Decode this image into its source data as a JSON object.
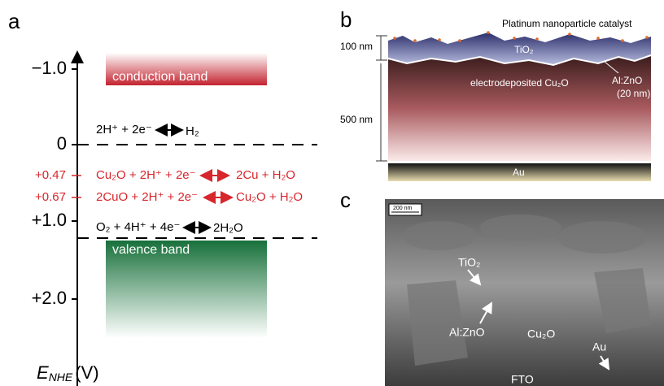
{
  "panel_a": {
    "label": "a",
    "ticks": [
      "−1.0",
      "0",
      "+1.0",
      "+2.0"
    ],
    "axis_title": {
      "symbol": "E",
      "subscript": "NHE",
      "unit": "(V)"
    },
    "conduction_band": "conduction band",
    "valence_band": "valence band",
    "potentials": [
      "+0.47",
      "+0.67"
    ],
    "reactions": [
      {
        "left": "2H⁺ + 2e⁻",
        "right": "H₂"
      },
      {
        "left": "Cu₂O + 2H⁺ + 2e⁻",
        "right": "2Cu + H₂O"
      },
      {
        "left": "2CuO + 2H⁺ + 2e⁻",
        "right": "Cu₂O + H₂O"
      },
      {
        "left": "O₂ + 4H⁺ + 4e⁻",
        "right": "2H₂O"
      }
    ]
  },
  "panel_b": {
    "label": "b",
    "catalyst": "Platinum nanoparticle catalyst",
    "thickness_top": "100 nm",
    "tio2": "TiO₂",
    "azo": "Al:ZnO",
    "azo_thickness": "(20 nm)",
    "cu2o": "electrodeposited Cu₂O",
    "thickness_cu2o": "500 nm",
    "au": "Au"
  },
  "panel_c": {
    "label": "c",
    "scale_bar": "200 nm",
    "tio2": "TiO₂",
    "azo": "Al:ZnO",
    "cu2o": "Cu₂O",
    "au": "Au",
    "fto": "FTO"
  }
}
